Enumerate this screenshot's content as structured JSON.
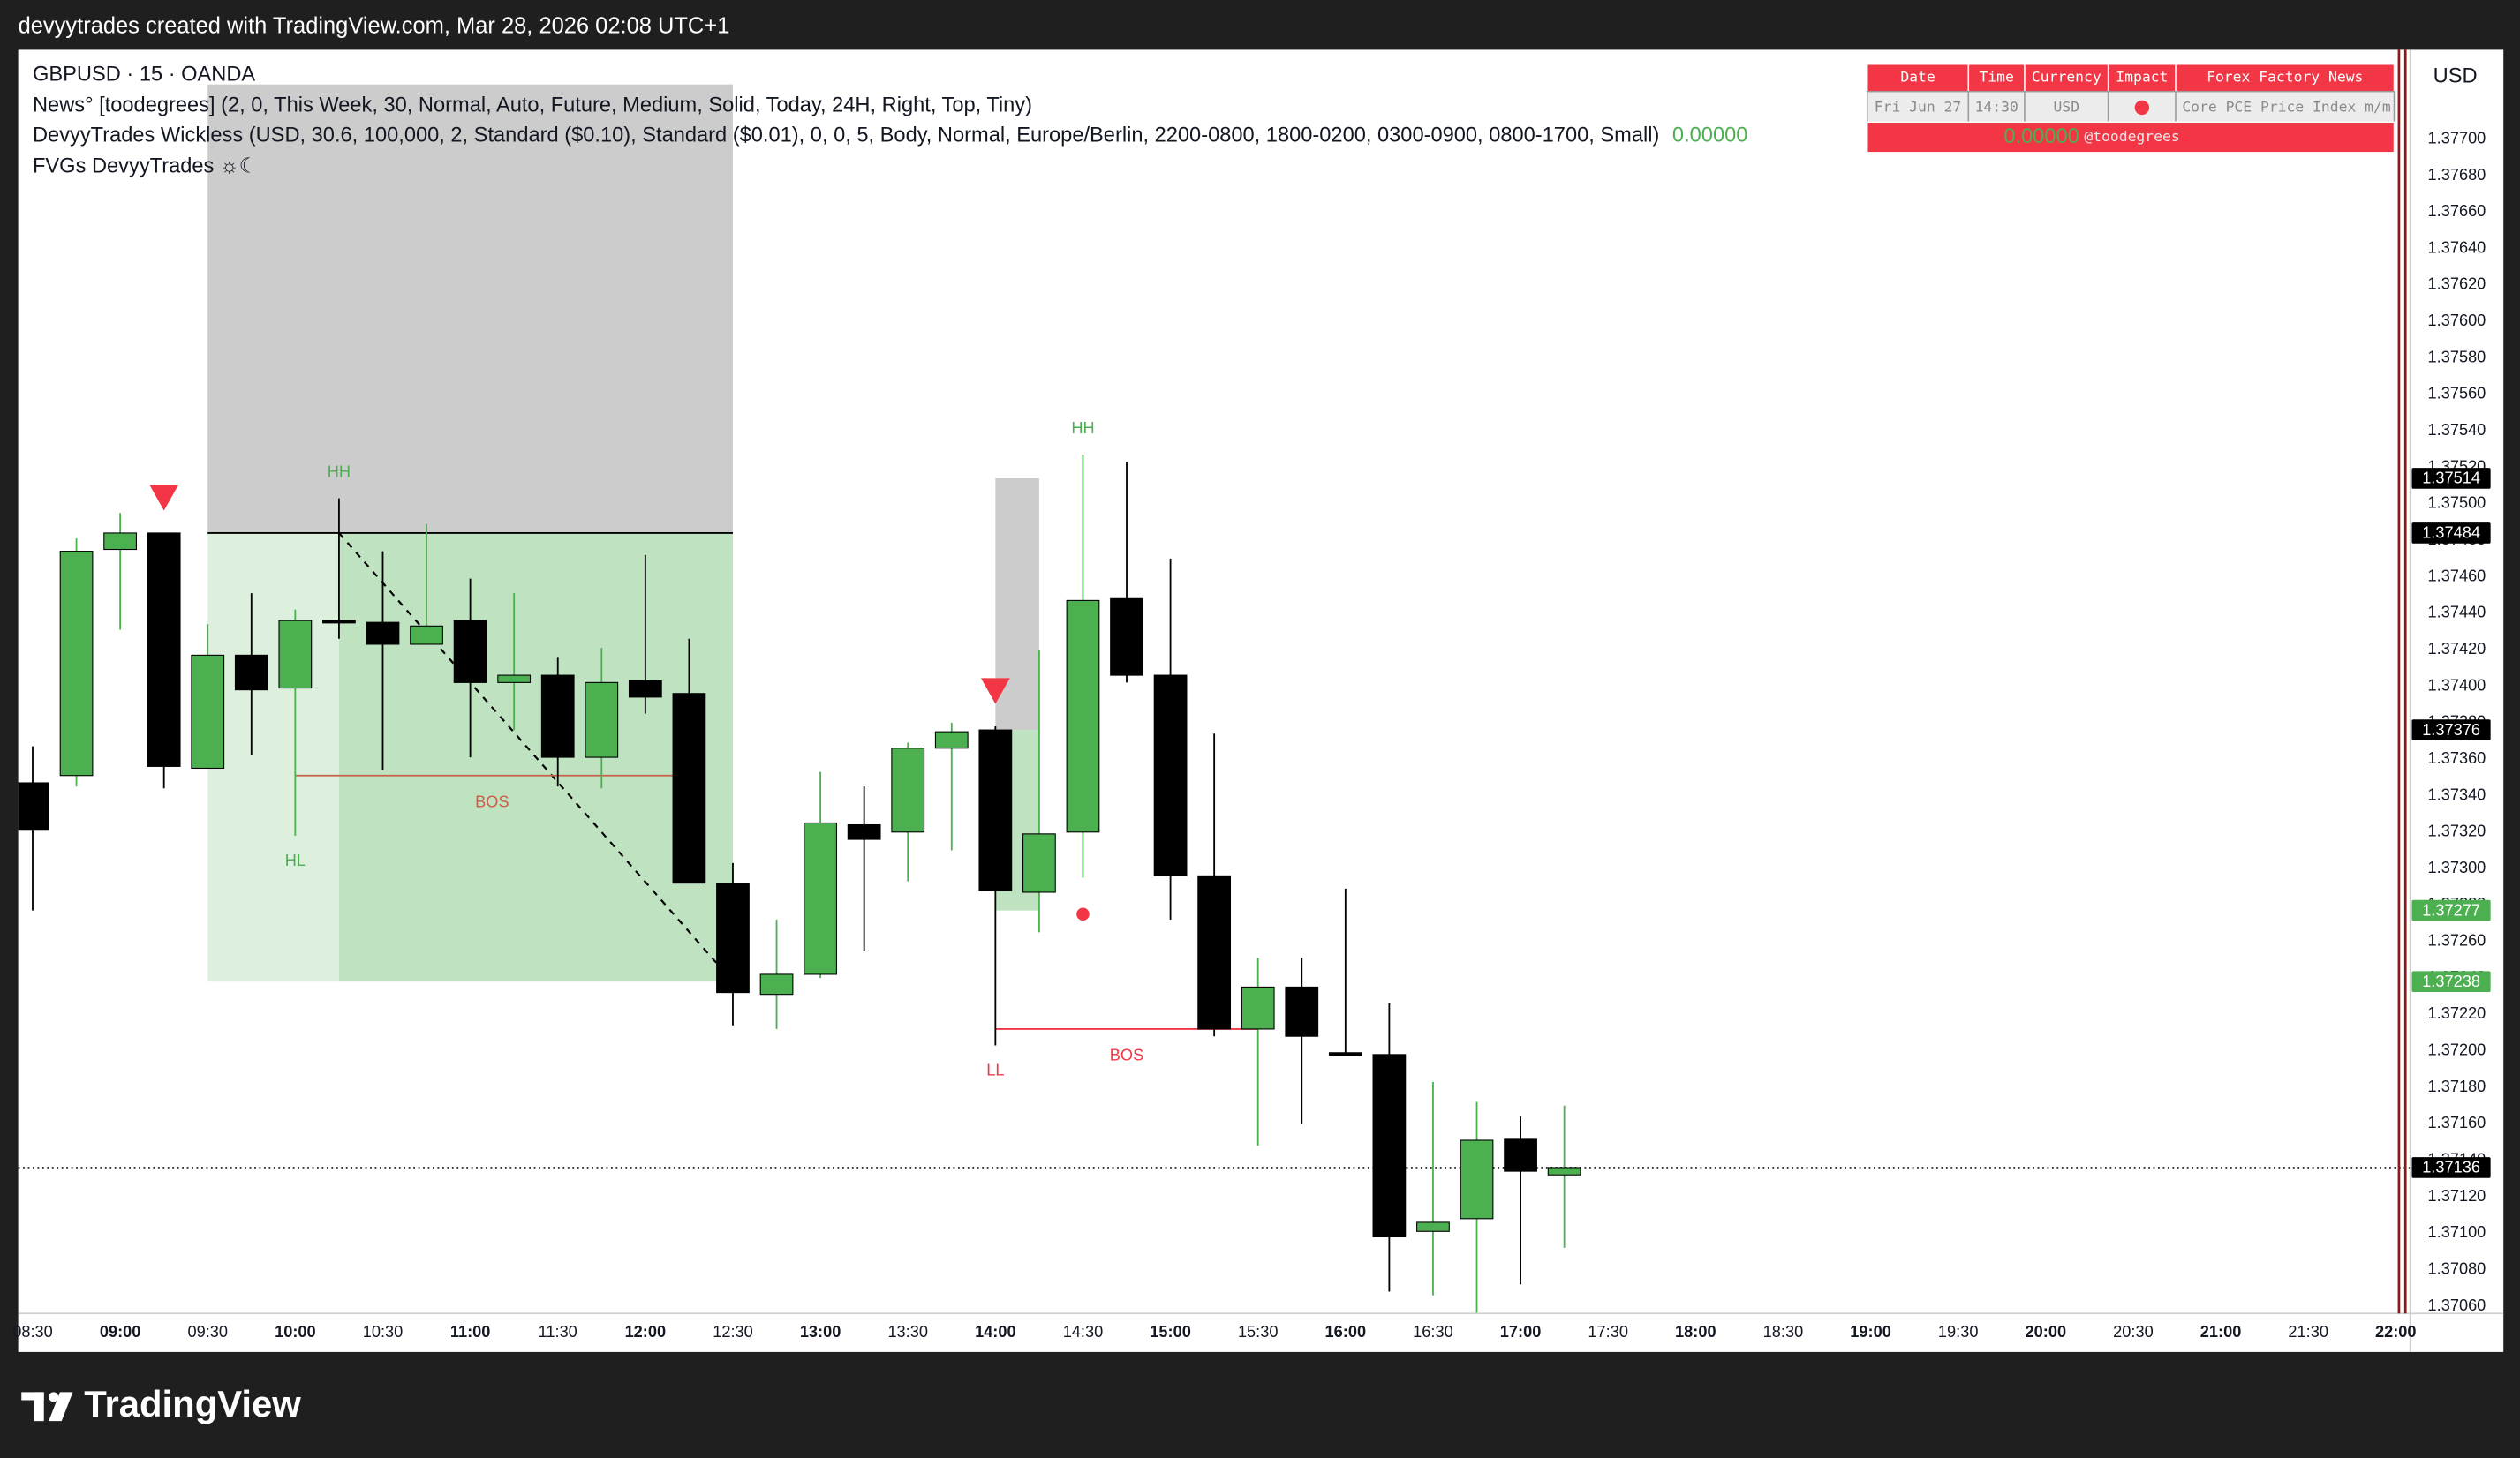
{
  "header": {
    "caption": "devyytrades created with TradingView.com, Mar 28, 2026 02:08 UTC+1"
  },
  "footer": {
    "brand": "TradingView"
  },
  "chart_data": {
    "type": "candlestick",
    "symbol": "GBPUSD · 15 · OANDA",
    "indicators": [
      "News° [toodegrees] (2, 0, This Week, 30, Normal, Auto, Future, Medium, Solid, Today, 24H, Right, Top, Tiny)",
      "DevyyTrades Wickless (USD, 30.6, 100,000, 2, Standard ($0.10), Standard ($0.01), 0, 0, 5, Body, Normal, Europe/Berlin, 2200-0800, 1800-0200, 0300-0900, 0800-1700, Small)",
      "FVGs DevyyTrades ☼☾"
    ],
    "indicator_value": "0.00000",
    "currency": "USD",
    "up_color": "#4caf50",
    "down_color": "#000000",
    "x": [
      "08:30",
      "08:45",
      "09:00",
      "09:15",
      "09:30",
      "09:45",
      "10:00",
      "10:15",
      "10:30",
      "10:45",
      "11:00",
      "11:15",
      "11:30",
      "11:45",
      "12:00",
      "12:15",
      "12:30",
      "12:45",
      "13:00",
      "13:15",
      "13:30",
      "13:45",
      "14:00",
      "14:15",
      "14:30",
      "14:45",
      "15:00",
      "15:15",
      "15:30",
      "15:45",
      "16:00",
      "16:15",
      "16:30",
      "16:45",
      "17:00",
      "17:15"
    ],
    "open": [
      1.37347,
      1.37351,
      1.37475,
      1.37484,
      1.37355,
      1.37417,
      1.37399,
      1.37436,
      1.37435,
      1.37423,
      1.37436,
      1.37402,
      1.37406,
      1.37361,
      1.37403,
      1.37396,
      1.37292,
      1.37231,
      1.37242,
      1.37324,
      1.3732,
      1.37366,
      1.37376,
      1.37287,
      1.3732,
      1.37448,
      1.37406,
      1.37296,
      1.37212,
      1.37235,
      1.37199,
      1.37198,
      1.37101,
      1.37108,
      1.37152,
      1.37132
    ],
    "high": [
      1.37367,
      1.37481,
      1.37495,
      1.37484,
      1.37434,
      1.37451,
      1.37442,
      1.37503,
      1.37474,
      1.37489,
      1.37459,
      1.37451,
      1.37416,
      1.37421,
      1.37472,
      1.37426,
      1.37303,
      1.37272,
      1.37353,
      1.37345,
      1.37369,
      1.3738,
      1.37378,
      1.3742,
      1.37527,
      1.37523,
      1.3747,
      1.37374,
      1.37251,
      1.37251,
      1.37289,
      1.37226,
      1.37183,
      1.37172,
      1.37164,
      1.3717
    ],
    "low": [
      1.37277,
      1.37345,
      1.37431,
      1.37344,
      1.37355,
      1.37362,
      1.37318,
      1.37426,
      1.37354,
      1.37423,
      1.37361,
      1.37376,
      1.37345,
      1.37344,
      1.37385,
      1.37292,
      1.37214,
      1.37212,
      1.3724,
      1.37255,
      1.37293,
      1.3731,
      1.37203,
      1.37265,
      1.37295,
      1.37402,
      1.37272,
      1.37208,
      1.37148,
      1.3716,
      1.37198,
      1.37068,
      1.37066,
      1.37056,
      1.37072,
      1.37092
    ],
    "close": [
      1.37321,
      1.37474,
      1.37484,
      1.37356,
      1.37417,
      1.37398,
      1.37436,
      1.37435,
      1.37423,
      1.37433,
      1.37402,
      1.37406,
      1.37361,
      1.37402,
      1.37394,
      1.37292,
      1.37232,
      1.37242,
      1.37325,
      1.37316,
      1.37366,
      1.37375,
      1.37288,
      1.37319,
      1.37447,
      1.37406,
      1.37296,
      1.37212,
      1.37235,
      1.37208,
      1.37198,
      1.37098,
      1.37106,
      1.37151,
      1.37134,
      1.37136
    ],
    "xticks": [
      "08:30",
      "09:00",
      "09:30",
      "10:00",
      "10:30",
      "11:00",
      "11:30",
      "12:00",
      "12:30",
      "13:00",
      "13:30",
      "14:00",
      "14:30",
      "15:00",
      "15:30",
      "16:00",
      "16:30",
      "17:00",
      "17:30",
      "18:00",
      "18:30",
      "19:00",
      "19:30",
      "20:00",
      "20:30",
      "21:00",
      "21:30",
      "22:00"
    ],
    "ylim": [
      1.37056,
      1.37749
    ],
    "yticks": [
      {
        "value": 1.3706,
        "label": "1.37060"
      },
      {
        "value": 1.3708,
        "label": "1.37080"
      },
      {
        "value": 1.371,
        "label": "1.37100"
      },
      {
        "value": 1.3712,
        "label": "1.37120"
      },
      {
        "value": 1.3714,
        "label": "1.37140"
      },
      {
        "value": 1.3716,
        "label": "1.37160"
      },
      {
        "value": 1.3718,
        "label": "1.37180"
      },
      {
        "value": 1.372,
        "label": "1.37200"
      },
      {
        "value": 1.3722,
        "label": "1.37220"
      },
      {
        "value": 1.3724,
        "label": "1.37240"
      },
      {
        "value": 1.3726,
        "label": "1.37260"
      },
      {
        "value": 1.3728,
        "label": "1.37280"
      },
      {
        "value": 1.373,
        "label": "1.37300"
      },
      {
        "value": 1.3732,
        "label": "1.37320"
      },
      {
        "value": 1.3734,
        "label": "1.37340"
      },
      {
        "value": 1.3736,
        "label": "1.37360"
      },
      {
        "value": 1.3738,
        "label": "1.37380"
      },
      {
        "value": 1.374,
        "label": "1.37400"
      },
      {
        "value": 1.3742,
        "label": "1.37420"
      },
      {
        "value": 1.3744,
        "label": "1.37440"
      },
      {
        "value": 1.3746,
        "label": "1.37460"
      },
      {
        "value": 1.3748,
        "label": "1.37480"
      },
      {
        "value": 1.375,
        "label": "1.37500"
      },
      {
        "value": 1.3752,
        "label": "1.37520"
      },
      {
        "value": 1.3754,
        "label": "1.37540"
      },
      {
        "value": 1.3756,
        "label": "1.37560"
      },
      {
        "value": 1.3758,
        "label": "1.37580"
      },
      {
        "value": 1.376,
        "label": "1.37600"
      },
      {
        "value": 1.3762,
        "label": "1.37620"
      },
      {
        "value": 1.3764,
        "label": "1.37640"
      },
      {
        "value": 1.3766,
        "label": "1.37660"
      },
      {
        "value": 1.3768,
        "label": "1.37680"
      },
      {
        "value": 1.377,
        "label": "1.37700"
      }
    ],
    "last_price": 1.37136,
    "price_labels": [
      {
        "value": 1.37514,
        "color": "#000000"
      },
      {
        "value": 1.37484,
        "color": "#000000"
      },
      {
        "value": 1.37376,
        "color": "#000000"
      },
      {
        "value": 1.37277,
        "color": "#4caf50"
      },
      {
        "value": 1.37238,
        "color": "#4caf50"
      }
    ],
    "zones": [
      {
        "start": "09:30",
        "end": "12:30",
        "top": 1.3773,
        "bottom": 1.37484,
        "color": "#cccccc"
      },
      {
        "start": "09:30",
        "end": "10:15",
        "top": 1.37484,
        "bottom": 1.37238,
        "color": "#ddefdd"
      },
      {
        "start": "10:15",
        "end": "12:30",
        "top": 1.37484,
        "bottom": 1.37238,
        "color": "#bfe3c1"
      },
      {
        "start": "14:00",
        "end": "14:15",
        "top": 1.37514,
        "bottom": 1.37376,
        "color": "#cccccc"
      },
      {
        "start": "14:00",
        "end": "14:15",
        "top": 1.37376,
        "bottom": 1.37277,
        "color": "#bfe3c1"
      }
    ],
    "bos": [
      {
        "label": "BOS",
        "price": 1.37351,
        "start": "10:00",
        "end": "12:15",
        "color": "#c8614a"
      },
      {
        "label": "BOS",
        "price": 1.37212,
        "start": "14:00",
        "end": "15:30",
        "color": "#f23645"
      }
    ],
    "swings": [
      {
        "label": "HH",
        "time": "10:15",
        "at": "high",
        "color": "#4caf50"
      },
      {
        "label": "HL",
        "time": "10:00",
        "at": "low",
        "color": "#4caf50"
      },
      {
        "label": "HH",
        "time": "14:30",
        "at": "high",
        "color": "#4caf50"
      },
      {
        "label": "LL",
        "time": "14:00",
        "at": "low",
        "color": "#f23645"
      }
    ],
    "signals": [
      {
        "time": "09:15",
        "color": "#f23645"
      },
      {
        "time": "14:00",
        "color": "#f23645"
      }
    ],
    "trend_line": {
      "start": "10:15",
      "end": "12:30",
      "from": 1.37484,
      "to": 1.37238
    },
    "dot": {
      "time": "14:30",
      "price": 1.37275,
      "color": "#f23645"
    }
  },
  "news_table": {
    "headers": [
      "Date",
      "Time",
      "Currency",
      "Impact",
      "Forex Factory News"
    ],
    "row": [
      "Fri Jun 27",
      "14:30",
      "USD",
      "Core PCE Price Index m/m"
    ],
    "impact_color": "#f23645",
    "footer": [
      "0.00000",
      "@toodegrees"
    ]
  }
}
